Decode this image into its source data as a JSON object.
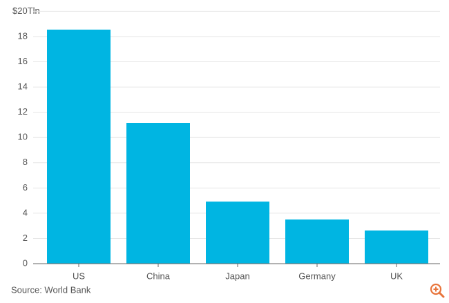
{
  "chart_data": {
    "type": "bar",
    "categories": [
      "US",
      "China",
      "Japan",
      "Germany",
      "UK"
    ],
    "values": [
      18.55,
      11.16,
      4.92,
      3.5,
      2.63
    ],
    "color": "#00b5e2",
    "ylim": [
      0,
      20
    ],
    "yticks": [
      0,
      2,
      4,
      6,
      8,
      10,
      12,
      14,
      16,
      18,
      {
        "value": 20,
        "label": "$20Tln"
      }
    ],
    "grid": true,
    "source": "Source: World Bank"
  }
}
